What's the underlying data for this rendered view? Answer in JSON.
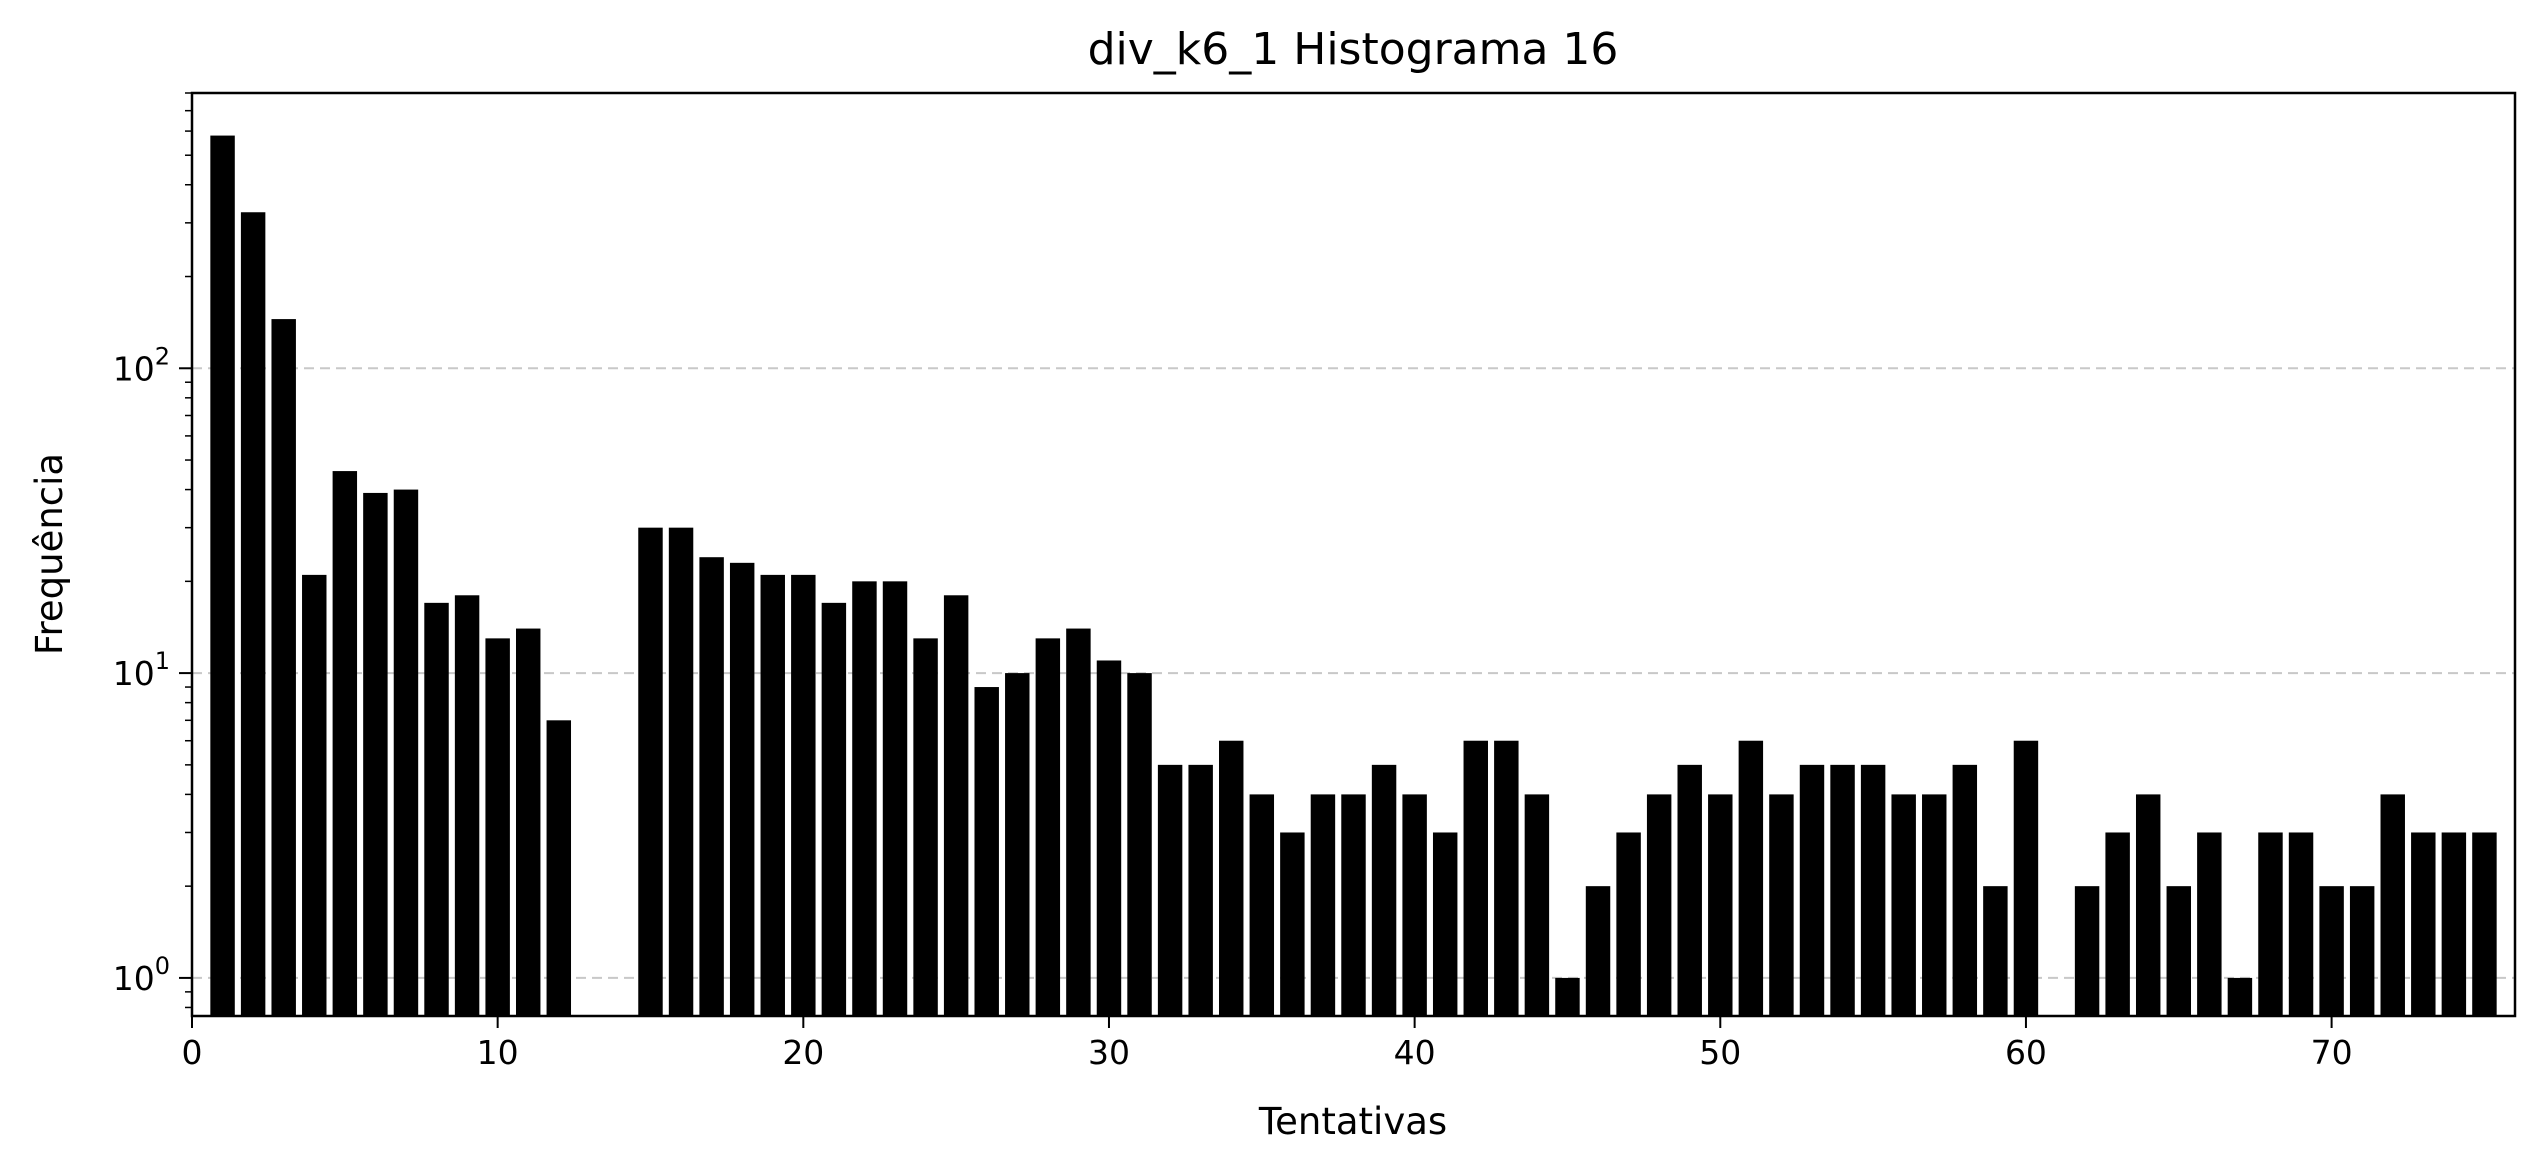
{
  "chart_data": {
    "type": "bar",
    "scale_y": "log",
    "title": "div_k6_1 Histograma 16",
    "xlabel": "Tentativas",
    "ylabel": "Frequência",
    "xlim": [
      0,
      76
    ],
    "ylim": [
      0.75,
      800
    ],
    "grid_y": true,
    "bar_color": "#000000",
    "x_ticks": [
      0,
      10,
      20,
      30,
      40,
      50,
      60,
      70
    ],
    "y_ticks": [
      {
        "value": 1,
        "base": "10",
        "exp": "0"
      },
      {
        "value": 10,
        "base": "10",
        "exp": "1"
      },
      {
        "value": 100,
        "base": "10",
        "exp": "2"
      }
    ],
    "bars": [
      {
        "x": 1,
        "y": 580
      },
      {
        "x": 2,
        "y": 325
      },
      {
        "x": 3,
        "y": 145
      },
      {
        "x": 4,
        "y": 21
      },
      {
        "x": 5,
        "y": 46
      },
      {
        "x": 6,
        "y": 39
      },
      {
        "x": 7,
        "y": 40
      },
      {
        "x": 8,
        "y": 17
      },
      {
        "x": 9,
        "y": 18
      },
      {
        "x": 10,
        "y": 13
      },
      {
        "x": 11,
        "y": 14
      },
      {
        "x": 12,
        "y": 7
      },
      {
        "x": 15,
        "y": 30
      },
      {
        "x": 16,
        "y": 30
      },
      {
        "x": 17,
        "y": 24
      },
      {
        "x": 18,
        "y": 23
      },
      {
        "x": 19,
        "y": 21
      },
      {
        "x": 20,
        "y": 21
      },
      {
        "x": 21,
        "y": 17
      },
      {
        "x": 22,
        "y": 20
      },
      {
        "x": 23,
        "y": 20
      },
      {
        "x": 24,
        "y": 13
      },
      {
        "x": 25,
        "y": 18
      },
      {
        "x": 26,
        "y": 9
      },
      {
        "x": 27,
        "y": 10
      },
      {
        "x": 28,
        "y": 13
      },
      {
        "x": 29,
        "y": 14
      },
      {
        "x": 30,
        "y": 11
      },
      {
        "x": 31,
        "y": 10
      },
      {
        "x": 32,
        "y": 5
      },
      {
        "x": 33,
        "y": 5
      },
      {
        "x": 34,
        "y": 6
      },
      {
        "x": 35,
        "y": 4
      },
      {
        "x": 36,
        "y": 3
      },
      {
        "x": 37,
        "y": 4
      },
      {
        "x": 38,
        "y": 4
      },
      {
        "x": 39,
        "y": 5
      },
      {
        "x": 40,
        "y": 4
      },
      {
        "x": 41,
        "y": 3
      },
      {
        "x": 42,
        "y": 6
      },
      {
        "x": 43,
        "y": 6
      },
      {
        "x": 44,
        "y": 4
      },
      {
        "x": 45,
        "y": 1
      },
      {
        "x": 46,
        "y": 2
      },
      {
        "x": 47,
        "y": 3
      },
      {
        "x": 48,
        "y": 4
      },
      {
        "x": 49,
        "y": 5
      },
      {
        "x": 50,
        "y": 4
      },
      {
        "x": 51,
        "y": 6
      },
      {
        "x": 52,
        "y": 4
      },
      {
        "x": 53,
        "y": 5
      },
      {
        "x": 54,
        "y": 5
      },
      {
        "x": 55,
        "y": 5
      },
      {
        "x": 56,
        "y": 4
      },
      {
        "x": 57,
        "y": 4
      },
      {
        "x": 58,
        "y": 5
      },
      {
        "x": 59,
        "y": 2
      },
      {
        "x": 60,
        "y": 6
      },
      {
        "x": 62,
        "y": 2
      },
      {
        "x": 63,
        "y": 3
      },
      {
        "x": 64,
        "y": 4
      },
      {
        "x": 65,
        "y": 2
      },
      {
        "x": 66,
        "y": 3
      },
      {
        "x": 67,
        "y": 1
      },
      {
        "x": 68,
        "y": 3
      },
      {
        "x": 69,
        "y": 3
      },
      {
        "x": 70,
        "y": 2
      },
      {
        "x": 71,
        "y": 2
      },
      {
        "x": 72,
        "y": 4
      },
      {
        "x": 73,
        "y": 3
      },
      {
        "x": 74,
        "y": 3
      },
      {
        "x": 75,
        "y": 3
      }
    ]
  }
}
